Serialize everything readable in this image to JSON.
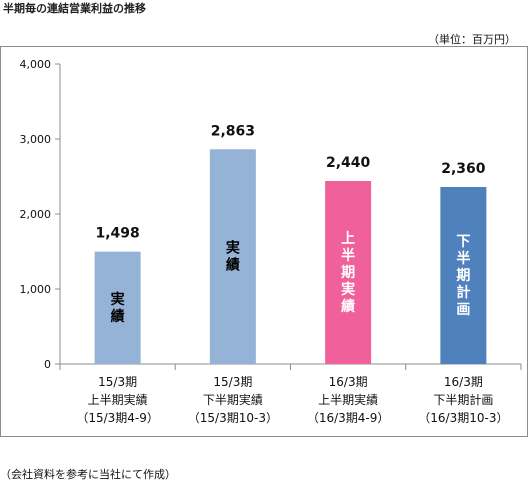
{
  "title": "半期毎の連結営業利益の推移",
  "unit_note": "（単位：百万円）",
  "source_note": "（会社資料を参考に当社にて作成）",
  "chart_data": {
    "type": "bar",
    "title": "",
    "xlabel": "",
    "ylabel": "",
    "ylim": [
      0,
      4000
    ],
    "yticks": [
      0,
      1000,
      2000,
      3000,
      4000
    ],
    "ytick_labels": [
      "0",
      "1,000",
      "2,000",
      "3,000",
      "4,000"
    ],
    "grid": false,
    "legend": "none",
    "categories": [
      [
        "15/3期",
        "上半期実績",
        "（15/3期4-9）"
      ],
      [
        "15/3期",
        "下半期実績",
        "（15/3期10-3）"
      ],
      [
        "16/3期",
        "上半期実績",
        "（16/3期4-9）"
      ],
      [
        "16/3期",
        "下半期計画",
        "（16/3期10-3）"
      ]
    ],
    "values": [
      1498,
      2863,
      2440,
      2360
    ],
    "value_labels": [
      "1,498",
      "2,863",
      "2,440",
      "2,360"
    ],
    "bar_labels": [
      "実績",
      "実績",
      "上半期実績",
      "下半期計画"
    ],
    "bar_colors": [
      "#95b3d7",
      "#95b3d7",
      "#f0609a",
      "#4f81bd"
    ],
    "bar_label_colors": [
      "#000000",
      "#000000",
      "#ffffff",
      "#ffffff"
    ]
  }
}
